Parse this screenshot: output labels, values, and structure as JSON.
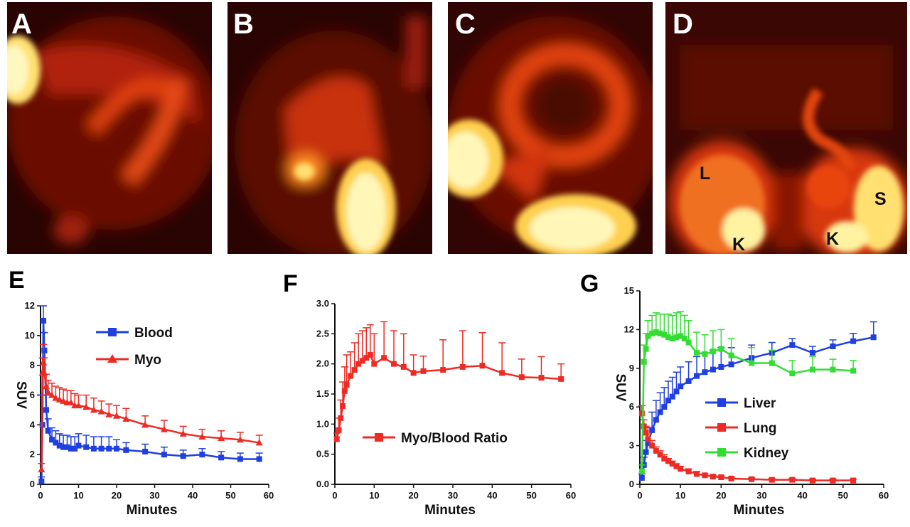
{
  "image_panels": [
    {
      "letter": "A",
      "labels": []
    },
    {
      "letter": "B",
      "labels": []
    },
    {
      "letter": "C",
      "labels": []
    },
    {
      "letter": "D",
      "labels": [
        "L",
        "S",
        "K",
        "K"
      ]
    }
  ],
  "colors": {
    "blood": "#1f3fe0",
    "myo": "#ee2a24",
    "ratio": "#ee2a24",
    "liver": "#1f3fe0",
    "lung": "#ee2a24",
    "kidney": "#33dd33"
  },
  "chart_data": [
    {
      "panel": "E",
      "type": "line",
      "xlabel": "Minutes",
      "ylabel": "SUV",
      "xlim": [
        0,
        60
      ],
      "ylim": [
        0,
        12
      ],
      "xticks": [
        0,
        10,
        20,
        30,
        40,
        50,
        60
      ],
      "yticks": [
        0,
        2,
        4,
        6,
        8,
        10,
        12
      ],
      "legend_position": "top-right",
      "series": [
        {
          "name": "Blood",
          "marker": "square",
          "x": [
            0.25,
            0.5,
            0.75,
            1,
            1.5,
            2,
            3,
            4,
            5,
            6,
            7,
            8,
            9,
            10,
            12,
            14,
            16,
            18,
            20,
            22.5,
            27.5,
            32.5,
            37.5,
            42.5,
            47.5,
            52.5,
            57.5
          ],
          "y": [
            0.2,
            4.0,
            11.0,
            9.0,
            5.0,
            3.6,
            3.0,
            2.8,
            2.6,
            2.5,
            2.5,
            2.4,
            2.4,
            2.6,
            2.5,
            2.4,
            2.4,
            2.4,
            2.4,
            2.3,
            2.2,
            2.0,
            1.9,
            2.0,
            1.8,
            1.7,
            1.7
          ],
          "err": [
            0.3,
            2.0,
            1.0,
            1.2,
            1.0,
            0.8,
            0.8,
            0.8,
            0.8,
            0.8,
            0.8,
            0.8,
            0.8,
            0.8,
            0.8,
            0.8,
            0.8,
            0.8,
            0.6,
            0.5,
            0.5,
            0.5,
            0.4,
            0.4,
            0.4,
            0.4,
            0.4
          ]
        },
        {
          "name": "Myo",
          "marker": "triangle",
          "x": [
            0.25,
            0.5,
            0.75,
            1,
            1.5,
            2,
            3,
            4,
            5,
            6,
            7,
            8,
            9,
            10,
            12,
            14,
            16,
            18,
            20,
            22.5,
            27.5,
            32.5,
            37.5,
            42.5,
            47.5,
            52.5,
            57.5
          ],
          "y": [
            1.0,
            7.5,
            8.2,
            7.5,
            6.6,
            6.2,
            6.0,
            5.8,
            5.7,
            5.6,
            5.5,
            5.5,
            5.3,
            5.3,
            5.2,
            5.0,
            4.9,
            4.7,
            4.6,
            4.4,
            4.0,
            3.7,
            3.4,
            3.2,
            3.1,
            3.0,
            2.8
          ],
          "err": [
            0.4,
            1.0,
            1.2,
            1.0,
            0.8,
            0.8,
            0.8,
            0.8,
            0.8,
            0.8,
            0.8,
            0.8,
            0.8,
            0.7,
            0.8,
            0.8,
            0.7,
            0.7,
            0.7,
            0.7,
            0.6,
            0.6,
            0.5,
            0.5,
            0.5,
            0.5,
            0.5
          ]
        }
      ]
    },
    {
      "panel": "F",
      "type": "line",
      "xlabel": "Minutes",
      "ylabel": "",
      "xlim": [
        0,
        60
      ],
      "ylim": [
        0,
        3.0
      ],
      "xticks": [
        0,
        10,
        20,
        30,
        40,
        50,
        60
      ],
      "yticks": [
        0.0,
        0.5,
        1.0,
        1.5,
        2.0,
        2.5,
        3.0
      ],
      "legend_position": "bottom-right",
      "series": [
        {
          "name": "Myo/Blood Ratio",
          "marker": "square",
          "x": [
            0.5,
            1,
            1.5,
            2,
            2.5,
            3,
            4,
            5,
            6,
            7,
            8,
            9,
            10,
            12.5,
            15,
            17.5,
            20,
            22.5,
            27.5,
            32.5,
            37.5,
            42.5,
            47.5,
            52.5,
            57.5
          ],
          "y": [
            0.75,
            0.9,
            1.1,
            1.3,
            1.55,
            1.65,
            1.8,
            1.9,
            2.0,
            2.05,
            2.1,
            2.15,
            2.0,
            2.1,
            2.0,
            1.95,
            1.85,
            1.88,
            1.9,
            1.95,
            1.97,
            1.85,
            1.78,
            1.77,
            1.75
          ],
          "err": [
            0.1,
            0.2,
            0.3,
            0.4,
            0.4,
            0.5,
            0.4,
            0.45,
            0.5,
            0.5,
            0.5,
            0.5,
            0.5,
            0.6,
            0.55,
            0.55,
            0.3,
            0.25,
            0.5,
            0.6,
            0.55,
            0.5,
            0.3,
            0.35,
            0.25
          ]
        }
      ]
    },
    {
      "panel": "G",
      "type": "line",
      "xlabel": "Minutes",
      "ylabel": "SUV",
      "xlim": [
        0,
        60
      ],
      "ylim": [
        0,
        15
      ],
      "xticks": [
        0,
        10,
        20,
        30,
        40,
        50,
        60
      ],
      "yticks": [
        0,
        3,
        6,
        9,
        12,
        15
      ],
      "legend_position": "bottom-right",
      "series": [
        {
          "name": "Liver",
          "marker": "square",
          "x": [
            0.5,
            1,
            1.5,
            2,
            3,
            4,
            5,
            6,
            7,
            8,
            9,
            10,
            12,
            14,
            16,
            18,
            20,
            22.5,
            27.5,
            32.5,
            37.5,
            42.5,
            47.5,
            52.5,
            57.5
          ],
          "y": [
            0.5,
            1.5,
            2.5,
            3.2,
            4.2,
            5.0,
            5.6,
            6.0,
            6.5,
            6.8,
            7.2,
            7.6,
            8.0,
            8.4,
            8.7,
            8.9,
            9.1,
            9.3,
            9.8,
            10.2,
            10.8,
            10.2,
            10.7,
            11.1,
            11.4
          ],
          "err": [
            0.3,
            0.6,
            0.9,
            1.2,
            1.4,
            1.5,
            1.5,
            1.5,
            1.5,
            1.5,
            1.5,
            1.5,
            1.5,
            1.5,
            1.5,
            1.5,
            1.5,
            1.3,
            1.0,
            0.8,
            0.5,
            0.5,
            0.5,
            0.6,
            1.2
          ]
        },
        {
          "name": "Lung",
          "marker": "square",
          "x": [
            0.5,
            1,
            1.5,
            2,
            3,
            4,
            5,
            6,
            7,
            8,
            9,
            10,
            12,
            14,
            16,
            18,
            20,
            22.5,
            27.5,
            32.5,
            37.5,
            42.5,
            47.5,
            52.5
          ],
          "y": [
            5.5,
            4.5,
            4.0,
            3.5,
            3.0,
            2.6,
            2.3,
            2.0,
            1.8,
            1.6,
            1.4,
            1.2,
            1.0,
            0.8,
            0.7,
            0.6,
            0.55,
            0.45,
            0.4,
            0.35,
            0.35,
            0.3,
            0.3,
            0.3
          ],
          "err": [
            0.6,
            0.5,
            0.5,
            0.4,
            0.4,
            0.3,
            0.3,
            0.3,
            0.2,
            0.2,
            0.2,
            0.2,
            0.2,
            0.2,
            0.1,
            0.1,
            0.1,
            0.1,
            0.1,
            0.1,
            0.1,
            0.1,
            0.1,
            0.1
          ]
        },
        {
          "name": "Kidney",
          "marker": "square",
          "x": [
            0.5,
            1,
            1.5,
            2,
            3,
            4,
            5,
            6,
            7,
            8,
            9,
            10,
            11,
            12,
            14,
            16,
            18,
            20,
            22.5,
            27.5,
            32.5,
            37.5,
            42.5,
            47.5,
            52.5
          ],
          "y": [
            1.0,
            9.5,
            10.5,
            11.5,
            11.7,
            11.8,
            11.7,
            11.6,
            11.4,
            11.3,
            11.4,
            11.5,
            11.3,
            11.0,
            10.2,
            10.1,
            10.3,
            10.5,
            10.0,
            9.4,
            9.4,
            8.6,
            8.9,
            8.9,
            8.8
          ],
          "err": [
            0.5,
            1.3,
            1.2,
            1.2,
            1.4,
            1.5,
            1.5,
            1.6,
            1.8,
            1.8,
            1.9,
            1.9,
            1.8,
            1.7,
            1.6,
            1.5,
            1.6,
            1.5,
            1.3,
            1.2,
            1.0,
            1.0,
            1.0,
            0.8,
            0.8
          ]
        }
      ]
    }
  ]
}
